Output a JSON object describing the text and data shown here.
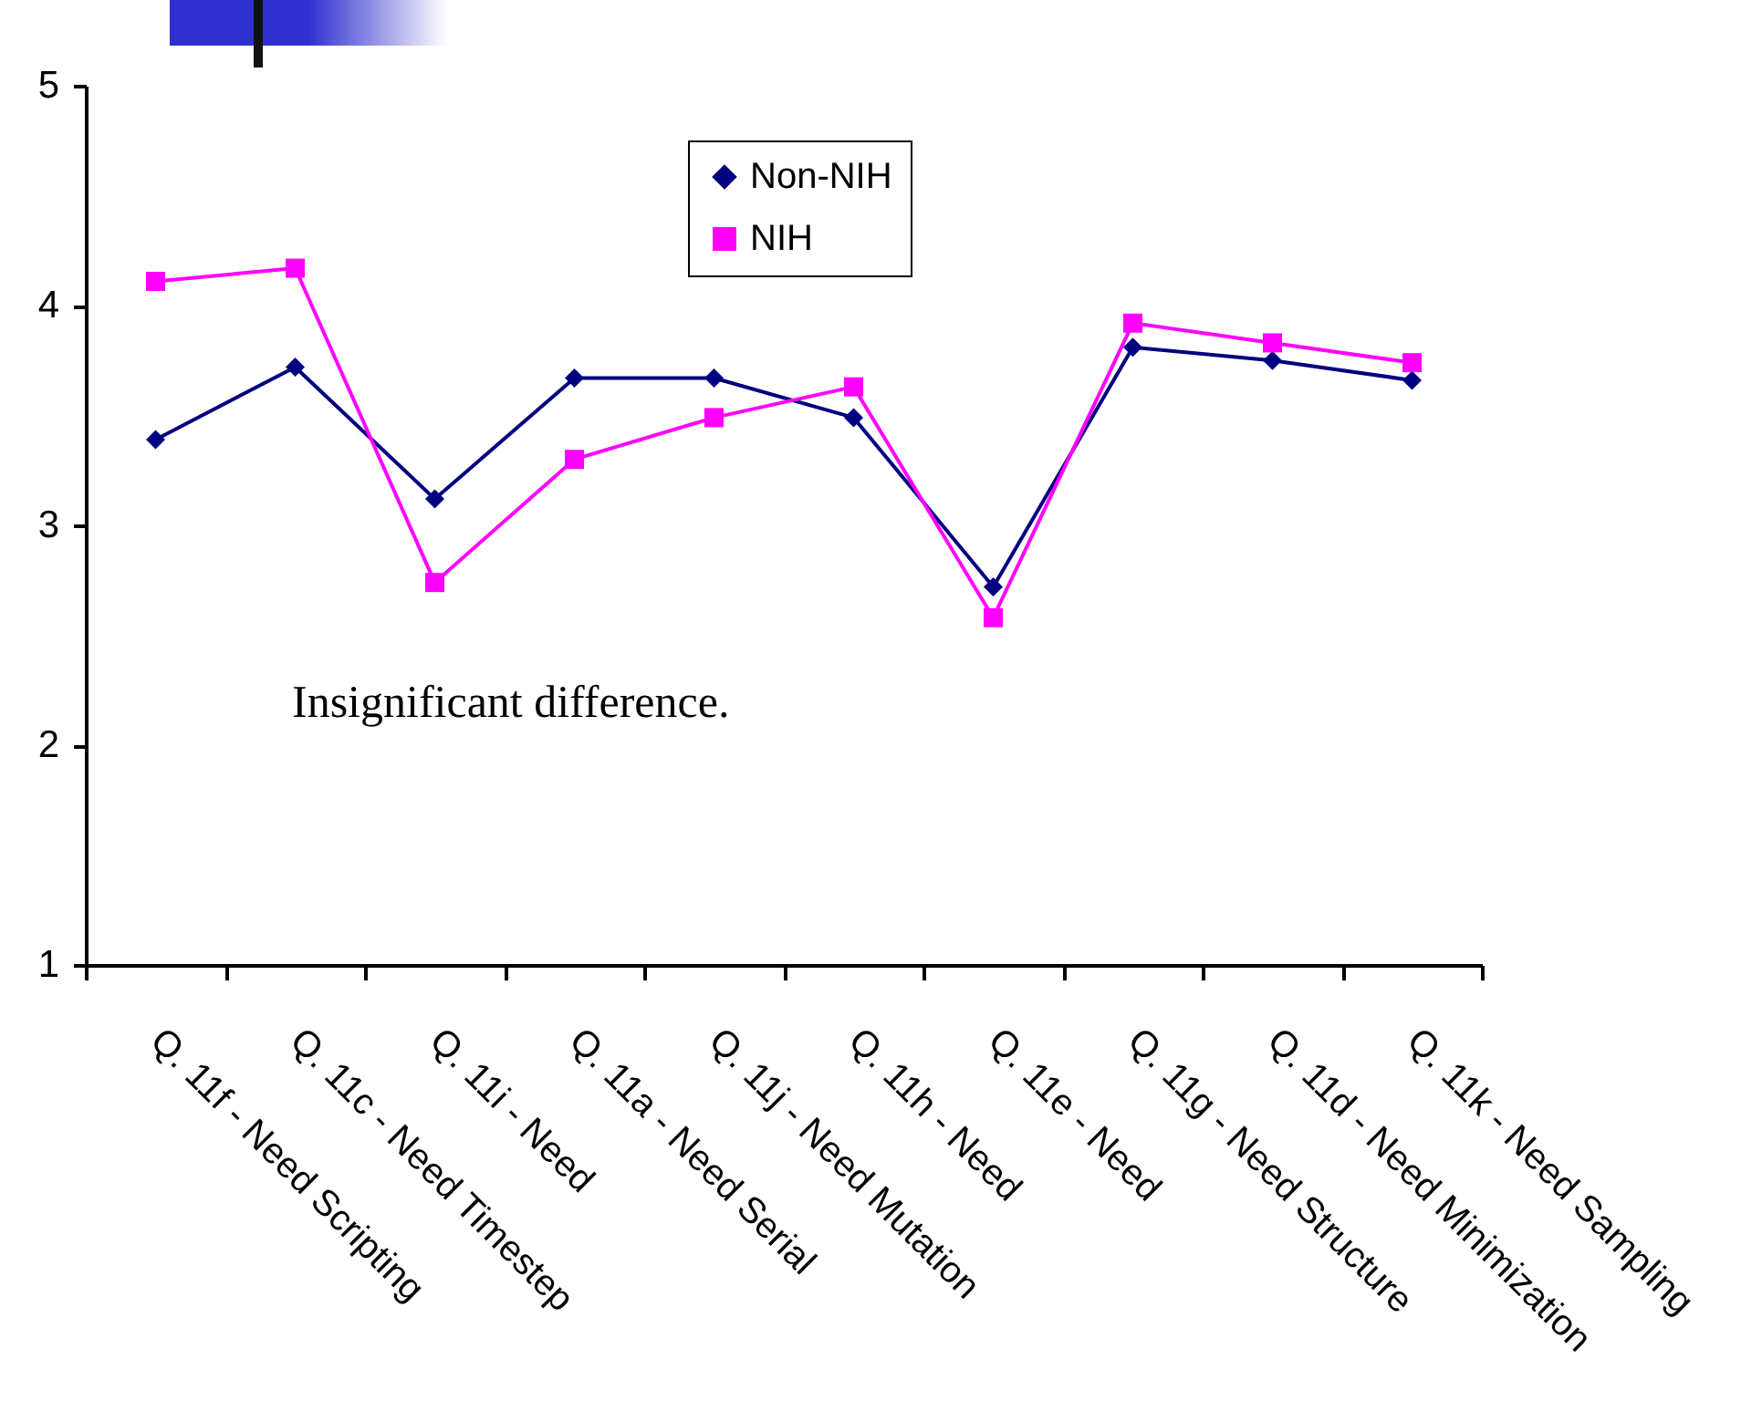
{
  "chart_data": {
    "type": "line",
    "categories": [
      "Q. 11f - Need Scripting",
      "Q. 11c - Need Timestep",
      "Q. 11i - Need",
      "Q. 11a - Need Serial",
      "Q. 11j - Need Mutation",
      "Q. 11h - Need",
      "Q. 11e - Need",
      "Q. 11g - Need Structure",
      "Q. 11d - Need Minimization",
      "Q. 11k - Need Sampling"
    ],
    "series": [
      {
        "name": "Non-NIH",
        "color": "#000080",
        "marker": "diamond",
        "values": [
          3.39,
          3.72,
          3.12,
          3.67,
          3.67,
          3.49,
          2.72,
          3.81,
          3.75,
          3.66
        ]
      },
      {
        "name": "NIH",
        "color": "#ff00ff",
        "marker": "square",
        "values": [
          4.11,
          4.17,
          2.74,
          3.3,
          3.49,
          3.63,
          2.58,
          3.92,
          3.83,
          3.74
        ]
      }
    ],
    "ylim": [
      1,
      5
    ],
    "yticks": [
      1,
      2,
      3,
      4,
      5
    ],
    "legend": "top",
    "annotations": [
      "Insignificant difference."
    ]
  }
}
